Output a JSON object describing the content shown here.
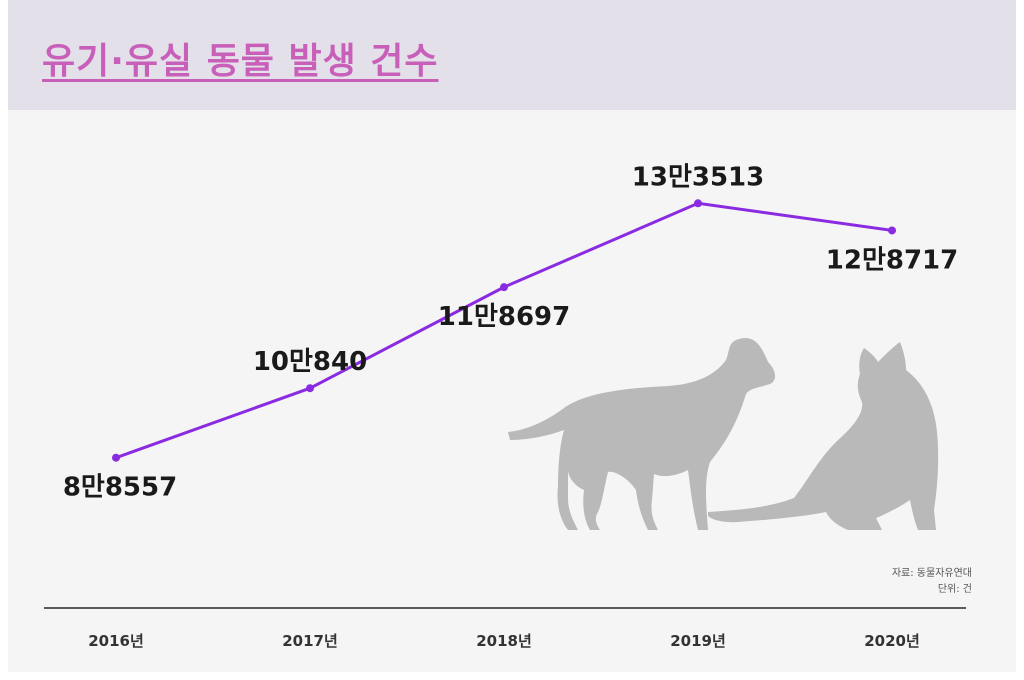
{
  "header": {
    "title": "유기·유실 동물 발생 건수"
  },
  "footnote": {
    "source": "자료: 동물자유연대",
    "unit": "단위: 건"
  },
  "colors": {
    "line": "#8a2be2",
    "title": "#c860ba",
    "header_bg": "#e4e0ea",
    "silhouette": "#b9b9b9"
  },
  "illustration": {
    "icons": [
      "dog-silhouette",
      "cat-silhouette"
    ]
  },
  "chart_data": {
    "type": "line",
    "categories": [
      "2016년",
      "2017년",
      "2018년",
      "2019년",
      "2020년"
    ],
    "series": [
      {
        "values": [
          88557,
          100840,
          118697,
          133513,
          128717
        ]
      }
    ],
    "data_labels": [
      "8만8557",
      "10만840",
      "11만8697",
      "13만3513",
      "12만8717"
    ],
    "title": "유기·유실 동물 발생 건수",
    "xlabel": "",
    "ylabel": "",
    "ylim": [
      62000,
      150000
    ],
    "grid": false,
    "legend": "none"
  }
}
